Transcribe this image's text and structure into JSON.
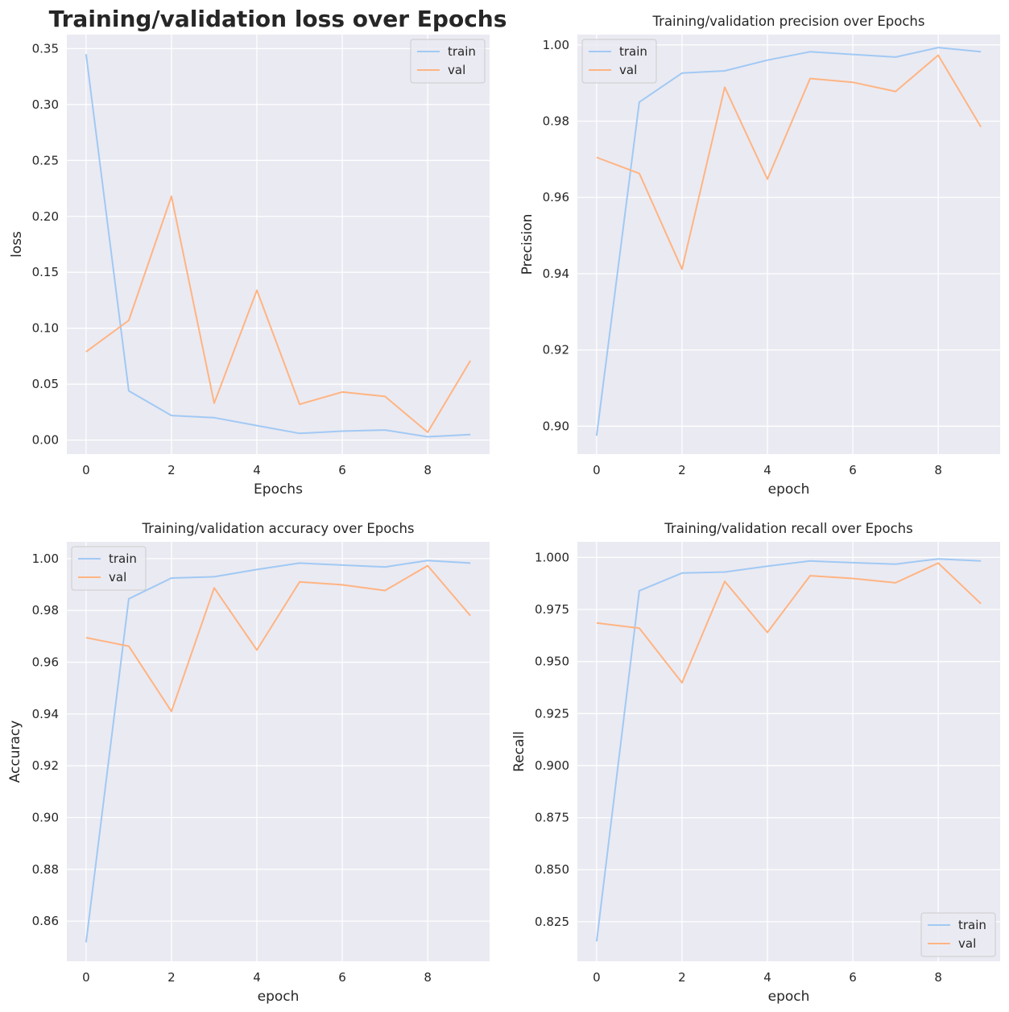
{
  "chart_data": [
    {
      "type": "line",
      "title": "Training/validation loss over Epochs",
      "title_style": "large-bold",
      "xlabel": "Epochs",
      "ylabel": "loss",
      "x": [
        0,
        1,
        2,
        3,
        4,
        5,
        6,
        7,
        8,
        9
      ],
      "xticks": [
        "0",
        "2",
        "4",
        "6",
        "8"
      ],
      "yticks": [
        "0.00",
        "0.05",
        "0.10",
        "0.15",
        "0.20",
        "0.25",
        "0.30",
        "0.35"
      ],
      "ylim": [
        -0.0125,
        0.3625
      ],
      "xlim": [
        -0.45,
        9.45
      ],
      "legend": "top-right",
      "grid": true,
      "series": [
        {
          "name": "train",
          "color": "#a1c9f4",
          "values": [
            0.345,
            0.044,
            0.022,
            0.02,
            0.013,
            0.006,
            0.008,
            0.009,
            0.003,
            0.005
          ]
        },
        {
          "name": "val",
          "color": "#ffb482",
          "values": [
            0.079,
            0.107,
            0.218,
            0.033,
            0.134,
            0.032,
            0.043,
            0.039,
            0.007,
            0.071
          ]
        }
      ]
    },
    {
      "type": "line",
      "title": "Training/validation precision over Epochs",
      "xlabel": "epoch",
      "ylabel": "Precision",
      "x": [
        0,
        1,
        2,
        3,
        4,
        5,
        6,
        7,
        8,
        9
      ],
      "xticks": [
        "0",
        "2",
        "4",
        "6",
        "8"
      ],
      "yticks": [
        "0.90",
        "0.92",
        "0.94",
        "0.96",
        "0.98",
        "1.00"
      ],
      "ylim": [
        0.8927,
        1.0027
      ],
      "xlim": [
        -0.45,
        9.45
      ],
      "legend": "top-left",
      "grid": true,
      "series": [
        {
          "name": "train",
          "color": "#a1c9f4",
          "values": [
            0.8975,
            0.985,
            0.9926,
            0.9932,
            0.996,
            0.9982,
            0.9975,
            0.9968,
            0.9993,
            0.9982
          ]
        },
        {
          "name": "val",
          "color": "#ffb482",
          "values": [
            0.9705,
            0.9663,
            0.9412,
            0.9889,
            0.9648,
            0.9912,
            0.9902,
            0.9878,
            0.9973,
            0.9785
          ]
        }
      ]
    },
    {
      "type": "line",
      "title": "Training/validation accuracy over Epochs",
      "xlabel": "epoch",
      "ylabel": "Accuracy",
      "x": [
        0,
        1,
        2,
        3,
        4,
        5,
        6,
        7,
        8,
        9
      ],
      "xticks": [
        "0",
        "2",
        "4",
        "6",
        "8"
      ],
      "yticks": [
        "0.86",
        "0.88",
        "0.90",
        "0.92",
        "0.94",
        "0.96",
        "0.98",
        "1.00"
      ],
      "ylim": [
        0.8445,
        1.0065
      ],
      "xlim": [
        -0.45,
        9.45
      ],
      "legend": "top-left",
      "grid": true,
      "series": [
        {
          "name": "train",
          "color": "#a1c9f4",
          "values": [
            0.8518,
            0.9845,
            0.9925,
            0.993,
            0.9958,
            0.9983,
            0.9975,
            0.9968,
            0.9993,
            0.9983
          ]
        },
        {
          "name": "val",
          "color": "#ffb482",
          "values": [
            0.9695,
            0.9662,
            0.941,
            0.9887,
            0.9647,
            0.991,
            0.9899,
            0.9877,
            0.9973,
            0.978
          ]
        }
      ]
    },
    {
      "type": "line",
      "title": "Training/validation recall over Epochs",
      "xlabel": "epoch",
      "ylabel": "Recall",
      "x": [
        0,
        1,
        2,
        3,
        4,
        5,
        6,
        7,
        8,
        9
      ],
      "xticks": [
        "0",
        "2",
        "4",
        "6",
        "8"
      ],
      "yticks": [
        "0.825",
        "0.850",
        "0.875",
        "0.900",
        "0.925",
        "0.950",
        "0.975",
        "1.000"
      ],
      "ylim": [
        0.806,
        1.0075
      ],
      "xlim": [
        -0.45,
        9.45
      ],
      "legend": "bottom-right",
      "grid": true,
      "series": [
        {
          "name": "train",
          "color": "#a1c9f4",
          "values": [
            0.8155,
            0.984,
            0.9925,
            0.993,
            0.9958,
            0.9983,
            0.9975,
            0.9968,
            0.9993,
            0.9983
          ]
        },
        {
          "name": "val",
          "color": "#ffb482",
          "values": [
            0.9685,
            0.966,
            0.9398,
            0.9885,
            0.964,
            0.9912,
            0.9899,
            0.9878,
            0.9973,
            0.9778
          ]
        }
      ]
    }
  ]
}
